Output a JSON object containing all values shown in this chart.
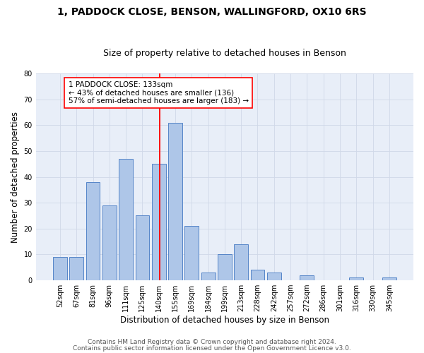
{
  "title1": "1, PADDOCK CLOSE, BENSON, WALLINGFORD, OX10 6RS",
  "title2": "Size of property relative to detached houses in Benson",
  "xlabel": "Distribution of detached houses by size in Benson",
  "ylabel": "Number of detached properties",
  "categories": [
    "52sqm",
    "67sqm",
    "81sqm",
    "96sqm",
    "111sqm",
    "125sqm",
    "140sqm",
    "155sqm",
    "169sqm",
    "184sqm",
    "199sqm",
    "213sqm",
    "228sqm",
    "242sqm",
    "257sqm",
    "272sqm",
    "286sqm",
    "301sqm",
    "316sqm",
    "330sqm",
    "345sqm"
  ],
  "values": [
    9,
    9,
    38,
    29,
    47,
    25,
    45,
    61,
    21,
    3,
    10,
    14,
    4,
    3,
    0,
    2,
    0,
    0,
    1,
    0,
    1
  ],
  "bar_color": "#aec6e8",
  "bar_edge_color": "#5585c8",
  "vline_color": "red",
  "annotation_text": "1 PADDOCK CLOSE: 133sqm\n← 43% of detached houses are smaller (136)\n57% of semi-detached houses are larger (183) →",
  "annotation_box_color": "white",
  "annotation_box_edge_color": "red",
  "grid_color": "#d0d8e8",
  "background_color": "#e8eef8",
  "ylim": [
    0,
    80
  ],
  "yticks": [
    0,
    10,
    20,
    30,
    40,
    50,
    60,
    70,
    80
  ],
  "footer1": "Contains HM Land Registry data © Crown copyright and database right 2024.",
  "footer2": "Contains public sector information licensed under the Open Government Licence v3.0.",
  "title1_fontsize": 10,
  "title2_fontsize": 9,
  "xlabel_fontsize": 8.5,
  "ylabel_fontsize": 8.5,
  "tick_fontsize": 7,
  "annotation_fontsize": 7.5,
  "footer_fontsize": 6.5
}
